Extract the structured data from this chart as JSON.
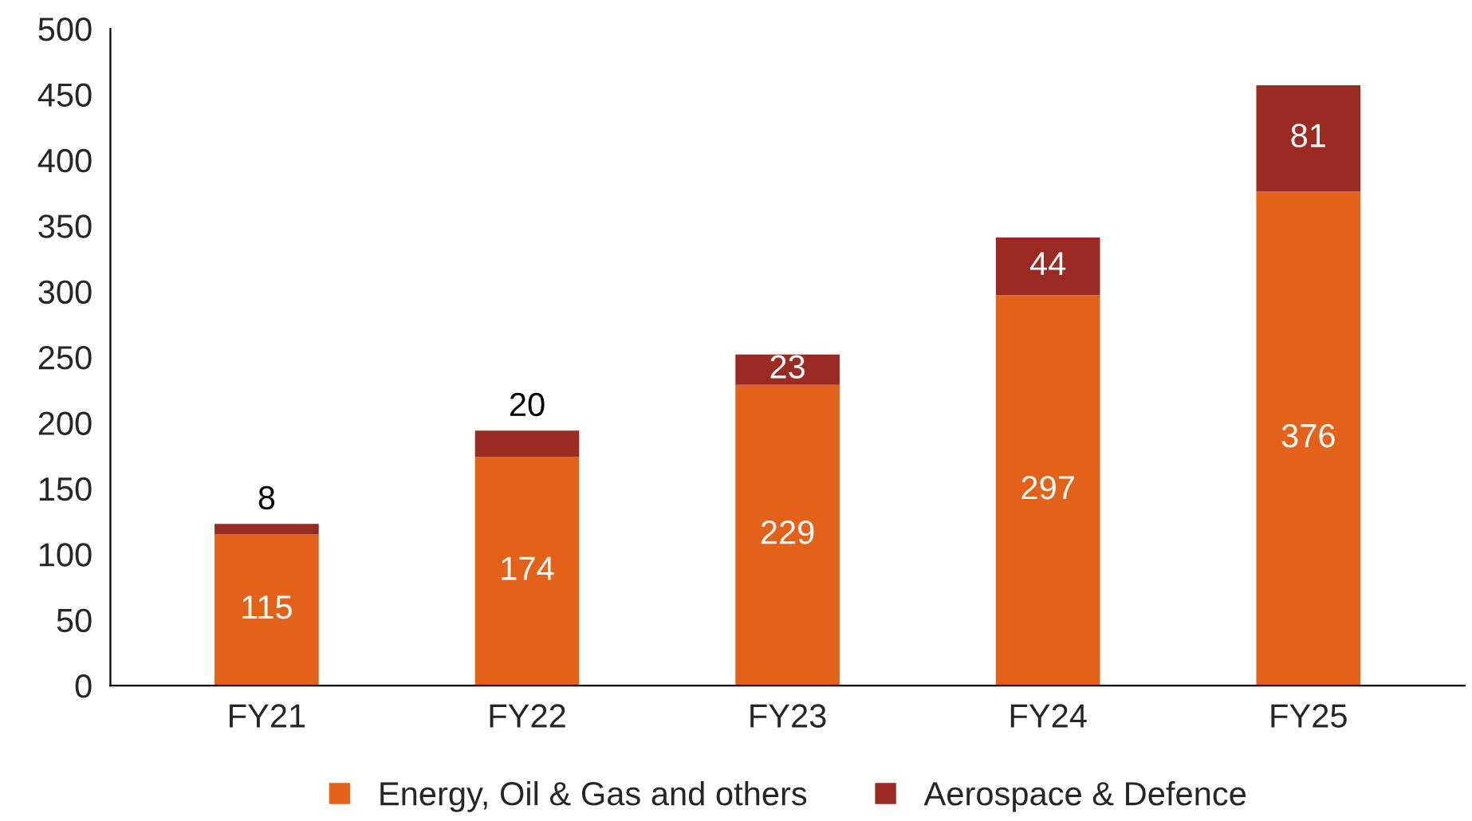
{
  "chart_data": {
    "type": "bar",
    "stacked": true,
    "categories": [
      "FY21",
      "FY22",
      "FY23",
      "FY24",
      "FY25"
    ],
    "series": [
      {
        "name": "Energy, Oil & Gas and others",
        "color": "#e36118",
        "values": [
          115,
          174,
          229,
          297,
          376
        ]
      },
      {
        "name": "Aerospace & Defence",
        "color": "#9b2a23",
        "values": [
          8,
          20,
          23,
          44,
          81
        ]
      }
    ],
    "ylim": [
      0,
      500
    ],
    "yticks": [
      0,
      50,
      100,
      150,
      200,
      250,
      300,
      350,
      400,
      450,
      500
    ],
    "data_labels": true,
    "grid": false,
    "legend": "bottom"
  }
}
